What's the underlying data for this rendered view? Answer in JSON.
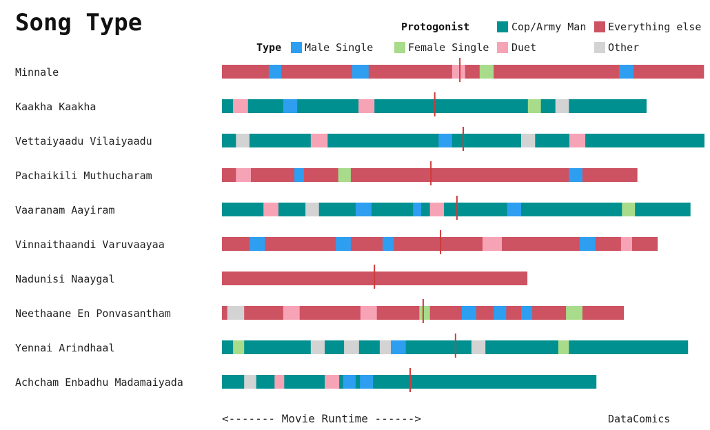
{
  "title": "Song Type",
  "legend": {
    "protagonist_title": "Protogonist",
    "type_title": "Type",
    "items": [
      {
        "key": "cop",
        "label": "Cop/Army Man",
        "color": "#009090"
      },
      {
        "key": "else",
        "label": "Everything else",
        "color": "#cd5262"
      },
      {
        "key": "male",
        "label": "Male Single",
        "color": "#2e9ef0"
      },
      {
        "key": "female",
        "label": "Female Single",
        "color": "#a8dc8a"
      },
      {
        "key": "duet",
        "label": "Duet",
        "color": "#f7a3b6"
      },
      {
        "key": "other",
        "label": "Other",
        "color": "#d3d3d3"
      }
    ]
  },
  "footer": {
    "runtime_label": "<------- Movie Runtime ------>",
    "credit": "DataComics"
  },
  "chart_data": {
    "type": "bar",
    "x_unit": "fraction of longest runtime",
    "x_max": 1.0,
    "marker_color": "#cd3b3b",
    "movies": [
      {
        "name": "Minnale",
        "protagonist": "else",
        "length": 0.999,
        "interval": 0.493,
        "songs": [
          {
            "type": "male",
            "start": 0.097,
            "end": 0.123
          },
          {
            "type": "male",
            "start": 0.27,
            "end": 0.304
          },
          {
            "type": "duet",
            "start": 0.477,
            "end": 0.504
          },
          {
            "type": "female",
            "start": 0.534,
            "end": 0.563
          },
          {
            "type": "male",
            "start": 0.823,
            "end": 0.853
          }
        ]
      },
      {
        "name": "Kaakha Kaakha",
        "protagonist": "cop",
        "length": 0.88,
        "interval": 0.441,
        "songs": [
          {
            "type": "duet",
            "start": 0.023,
            "end": 0.054
          },
          {
            "type": "male",
            "start": 0.127,
            "end": 0.156
          },
          {
            "type": "duet",
            "start": 0.283,
            "end": 0.316
          },
          {
            "type": "female",
            "start": 0.634,
            "end": 0.661
          },
          {
            "type": "other",
            "start": 0.691,
            "end": 0.719
          }
        ]
      },
      {
        "name": "Vettaiyaadu Vilaiyaadu",
        "protagonist": "cop",
        "length": 1.0,
        "interval": 0.5,
        "songs": [
          {
            "type": "other",
            "start": 0.029,
            "end": 0.057
          },
          {
            "type": "duet",
            "start": 0.184,
            "end": 0.219
          },
          {
            "type": "male",
            "start": 0.449,
            "end": 0.477
          },
          {
            "type": "other",
            "start": 0.62,
            "end": 0.649
          },
          {
            "type": "duet",
            "start": 0.72,
            "end": 0.753
          }
        ]
      },
      {
        "name": "Pachaikili Muthucharam",
        "protagonist": "else",
        "length": 0.861,
        "interval": 0.433,
        "songs": [
          {
            "type": "duet",
            "start": 0.029,
            "end": 0.06
          },
          {
            "type": "male",
            "start": 0.15,
            "end": 0.17
          },
          {
            "type": "female",
            "start": 0.241,
            "end": 0.267
          },
          {
            "type": "male",
            "start": 0.719,
            "end": 0.747
          }
        ]
      },
      {
        "name": "Vaaranam Aayiram",
        "protagonist": "cop",
        "length": 0.971,
        "interval": 0.487,
        "songs": [
          {
            "type": "duet",
            "start": 0.086,
            "end": 0.117
          },
          {
            "type": "other",
            "start": 0.173,
            "end": 0.201
          },
          {
            "type": "male",
            "start": 0.277,
            "end": 0.31
          },
          {
            "type": "male",
            "start": 0.396,
            "end": 0.413
          },
          {
            "type": "duet",
            "start": 0.431,
            "end": 0.46
          },
          {
            "type": "male",
            "start": 0.591,
            "end": 0.62
          },
          {
            "type": "female",
            "start": 0.829,
            "end": 0.856
          }
        ]
      },
      {
        "name": "Vinnaithaandi Varuvaayaa",
        "protagonist": "else",
        "length": 0.903,
        "interval": 0.453,
        "songs": [
          {
            "type": "male",
            "start": 0.057,
            "end": 0.089
          },
          {
            "type": "male",
            "start": 0.236,
            "end": 0.267
          },
          {
            "type": "male",
            "start": 0.333,
            "end": 0.356
          },
          {
            "type": "duet",
            "start": 0.54,
            "end": 0.58
          },
          {
            "type": "male",
            "start": 0.741,
            "end": 0.774
          },
          {
            "type": "duet",
            "start": 0.827,
            "end": 0.85
          }
        ]
      },
      {
        "name": "Nadunisi Naaygal",
        "protagonist": "else",
        "length": 0.633,
        "interval": 0.316,
        "songs": []
      },
      {
        "name": "Neethaane En Ponvasantham",
        "protagonist": "else",
        "length": 0.833,
        "interval": 0.417,
        "songs": [
          {
            "type": "other",
            "start": 0.011,
            "end": 0.046
          },
          {
            "type": "duet",
            "start": 0.127,
            "end": 0.161
          },
          {
            "type": "duet",
            "start": 0.287,
            "end": 0.321
          },
          {
            "type": "female",
            "start": 0.409,
            "end": 0.431
          },
          {
            "type": "male",
            "start": 0.497,
            "end": 0.527
          },
          {
            "type": "male",
            "start": 0.563,
            "end": 0.589
          },
          {
            "type": "male",
            "start": 0.62,
            "end": 0.643
          },
          {
            "type": "female",
            "start": 0.713,
            "end": 0.747
          }
        ]
      },
      {
        "name": "Yennai Arindhaal",
        "protagonist": "cop",
        "length": 0.966,
        "interval": 0.484,
        "songs": [
          {
            "type": "female",
            "start": 0.023,
            "end": 0.046
          },
          {
            "type": "other",
            "start": 0.184,
            "end": 0.213
          },
          {
            "type": "other",
            "start": 0.253,
            "end": 0.284
          },
          {
            "type": "other",
            "start": 0.327,
            "end": 0.35
          },
          {
            "type": "male",
            "start": 0.35,
            "end": 0.381
          },
          {
            "type": "other",
            "start": 0.517,
            "end": 0.546
          },
          {
            "type": "female",
            "start": 0.697,
            "end": 0.719
          }
        ]
      },
      {
        "name": "Achcham Enbadhu Madamaiyada",
        "protagonist": "cop",
        "length": 0.776,
        "interval": 0.39,
        "songs": [
          {
            "type": "other",
            "start": 0.046,
            "end": 0.071
          },
          {
            "type": "duet",
            "start": 0.109,
            "end": 0.129
          },
          {
            "type": "duet",
            "start": 0.213,
            "end": 0.243
          },
          {
            "type": "male",
            "start": 0.251,
            "end": 0.277
          },
          {
            "type": "male",
            "start": 0.286,
            "end": 0.313
          }
        ]
      }
    ]
  }
}
